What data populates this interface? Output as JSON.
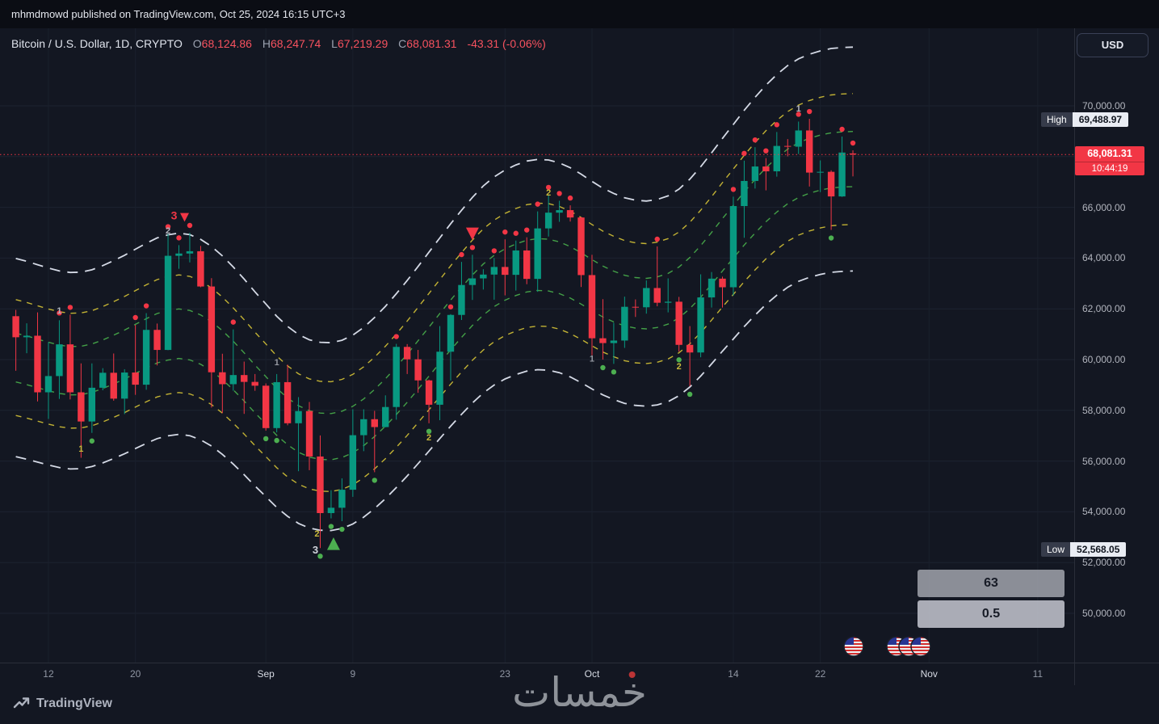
{
  "status_bar": {
    "text": "mhmdmowd published on TradingView.com, Oct 25, 2024 16:15 UTC+3"
  },
  "header": {
    "title": "Bitcoin / U.S. Dollar, 1D, CRYPTO",
    "ohlc_items": [
      {
        "label": "O",
        "value": "68,124.86"
      },
      {
        "label": "H",
        "value": "68,247.74"
      },
      {
        "label": "L",
        "value": "67,219.29"
      },
      {
        "label": "C",
        "value": "68,081.31"
      }
    ],
    "change": "-43.31 (-0.06%)"
  },
  "currency_button": {
    "label": "USD"
  },
  "badges": {
    "high_label": "High",
    "high_value": "69,488.97",
    "low_label": "Low",
    "low_value": "52,568.05",
    "last_price": "68,081.31",
    "countdown": "10:44:19"
  },
  "panels": {
    "value1": "63",
    "value2": "0.5"
  },
  "watermark": "خمسات",
  "logo_text": "TradingView",
  "colors": {
    "up": "#089981",
    "down": "#f23645",
    "buy": "#4caf50",
    "grid": "#1d2330",
    "vgrid": "#1a202c",
    "axis_sep": "#2a2e39"
  },
  "price_axis": {
    "ticks": [
      {
        "label": "70,000.00",
        "value": 70000
      },
      {
        "label": "68,000.00",
        "value": 68000
      },
      {
        "label": "66,000.00",
        "value": 66000
      },
      {
        "label": "64,000.00",
        "value": 64000
      },
      {
        "label": "62,000.00",
        "value": 62000
      },
      {
        "label": "60,000.00",
        "value": 60000
      },
      {
        "label": "58,000.00",
        "value": 58000
      },
      {
        "label": "56,000.00",
        "value": 56000
      },
      {
        "label": "54,000.00",
        "value": 54000
      },
      {
        "label": "52,000.00",
        "value": 52000
      },
      {
        "label": "50,000.00",
        "value": 50000
      }
    ]
  },
  "time_axis": {
    "ticks": [
      {
        "label": "12",
        "i": 3,
        "major": false
      },
      {
        "label": "20",
        "i": 11,
        "major": false
      },
      {
        "label": "Sep",
        "i": 23,
        "major": true
      },
      {
        "label": "9",
        "i": 31,
        "major": false
      },
      {
        "label": "23",
        "i": 45,
        "major": false
      },
      {
        "label": "Oct",
        "i": 53,
        "major": true
      },
      {
        "label": "14",
        "i": 66,
        "major": false
      },
      {
        "label": "22",
        "i": 74,
        "major": false
      },
      {
        "label": "Nov",
        "i": 84,
        "major": true
      },
      {
        "label": "11",
        "i": 94,
        "major": false
      }
    ]
  },
  "chart_data": {
    "type": "candlestick",
    "symbol": "BTCUSD",
    "timeframe": "1D",
    "title": "Bitcoin / U.S. Dollar, 1D, CRYPTO",
    "first_candle_date": "Aug 9 2024",
    "last_candle_date": "Oct 25 2024",
    "y_range_visible": [
      49000,
      72000
    ],
    "y_ticks": [
      50000,
      52000,
      54000,
      56000,
      58000,
      60000,
      62000,
      64000,
      66000,
      68000,
      70000
    ],
    "last_price": 68081.31,
    "session_high": 69488.97,
    "session_low": 52568.05,
    "ohlc": [
      [
        61710,
        61960,
        59560,
        60880
      ],
      [
        60880,
        61430,
        60250,
        60940
      ],
      [
        60940,
        61860,
        58350,
        58710
      ],
      [
        58710,
        60690,
        57660,
        59350
      ],
      [
        59350,
        61550,
        58450,
        60600
      ],
      [
        60600,
        61770,
        58430,
        58710
      ],
      [
        58710,
        59850,
        56130,
        57560
      ],
      [
        57560,
        59850,
        57110,
        58890
      ],
      [
        58890,
        59660,
        58790,
        59480
      ],
      [
        59480,
        60240,
        58380,
        58460
      ],
      [
        58460,
        59620,
        57850,
        59490
      ],
      [
        59490,
        61370,
        58610,
        59010
      ],
      [
        59010,
        61830,
        58810,
        61170
      ],
      [
        61170,
        61420,
        59770,
        60380
      ],
      [
        60380,
        64950,
        60370,
        64090
      ],
      [
        64090,
        64510,
        63580,
        64180
      ],
      [
        64180,
        65000,
        63830,
        64270
      ],
      [
        64270,
        64480,
        62850,
        62880
      ],
      [
        62880,
        63210,
        58110,
        59500
      ],
      [
        59500,
        60230,
        57890,
        59030
      ],
      [
        59030,
        61190,
        58770,
        59390
      ],
      [
        59390,
        59920,
        57860,
        59120
      ],
      [
        59120,
        59430,
        58770,
        58970
      ],
      [
        58970,
        59060,
        57200,
        57300
      ],
      [
        57300,
        59430,
        57130,
        59110
      ],
      [
        59110,
        59800,
        57410,
        57490
      ],
      [
        57490,
        58520,
        55600,
        57970
      ],
      [
        57970,
        58330,
        55640,
        56180
      ],
      [
        56180,
        57010,
        52570,
        53950
      ],
      [
        53950,
        54850,
        53740,
        54160
      ],
      [
        54160,
        55320,
        53630,
        54870
      ],
      [
        54870,
        58040,
        54590,
        57020
      ],
      [
        57020,
        58040,
        56390,
        57650
      ],
      [
        57650,
        57980,
        55560,
        57340
      ],
      [
        57340,
        58590,
        57330,
        58130
      ],
      [
        58130,
        60620,
        57630,
        60500
      ],
      [
        60500,
        60610,
        59430,
        60010
      ],
      [
        60010,
        60380,
        58690,
        59180
      ],
      [
        59180,
        59210,
        57490,
        58220
      ],
      [
        58220,
        61320,
        57610,
        60310
      ],
      [
        60310,
        61790,
        59170,
        61760
      ],
      [
        61760,
        63850,
        61560,
        62940
      ],
      [
        62940,
        64130,
        62350,
        63200
      ],
      [
        63200,
        63560,
        62760,
        63350
      ],
      [
        63350,
        64000,
        62360,
        63650
      ],
      [
        63650,
        64740,
        62530,
        63340
      ],
      [
        63340,
        64690,
        62720,
        64300
      ],
      [
        64300,
        64820,
        62970,
        63180
      ],
      [
        63180,
        65840,
        62670,
        65170
      ],
      [
        65170,
        66500,
        64850,
        65790
      ],
      [
        65790,
        66260,
        65430,
        65890
      ],
      [
        65890,
        66080,
        65440,
        65600
      ],
      [
        65600,
        65620,
        62860,
        63330
      ],
      [
        63330,
        64130,
        60170,
        60840
      ],
      [
        60840,
        62380,
        60000,
        60650
      ],
      [
        60650,
        61450,
        59830,
        60750
      ],
      [
        60750,
        62480,
        60460,
        62080
      ],
      [
        62080,
        62370,
        61680,
        62060
      ],
      [
        62060,
        63120,
        61810,
        62820
      ],
      [
        62820,
        64460,
        62100,
        62240
      ],
      [
        62240,
        63200,
        61860,
        62280
      ],
      [
        62280,
        62470,
        60310,
        60580
      ],
      [
        60580,
        61320,
        58950,
        60280
      ],
      [
        60280,
        63360,
        60090,
        62450
      ],
      [
        62450,
        63450,
        62050,
        63190
      ],
      [
        63190,
        63270,
        62050,
        62850
      ],
      [
        62850,
        66420,
        62520,
        66050
      ],
      [
        66050,
        67840,
        64800,
        67040
      ],
      [
        67040,
        68370,
        66740,
        67610
      ],
      [
        67610,
        67940,
        66670,
        67420
      ],
      [
        67420,
        68970,
        67210,
        68420
      ],
      [
        68420,
        68690,
        68010,
        68390
      ],
      [
        68390,
        69380,
        68100,
        69030
      ],
      [
        69030,
        69489,
        66820,
        67370
      ],
      [
        67370,
        67850,
        66600,
        67400
      ],
      [
        67400,
        67460,
        65110,
        66430
      ],
      [
        66430,
        68790,
        66410,
        68160
      ],
      [
        68124.86,
        68247.74,
        67219.29,
        68081.31
      ]
    ],
    "bands": [
      {
        "name": "outer-white",
        "mult": 0.065,
        "color": "#d5dae6",
        "dash": "13 9",
        "width": 1.8
      },
      {
        "name": "mid-yellow",
        "mult": 0.038,
        "color": "#c2b234",
        "dash": "7 7",
        "width": 1.4
      },
      {
        "name": "inner-green",
        "mult": 0.016,
        "color": "#43a047",
        "dash": "7 7",
        "width": 1.4
      }
    ],
    "signals": {
      "sell_dots": [
        4,
        5,
        11,
        12,
        14,
        15,
        16,
        20,
        35,
        40,
        41,
        42,
        44,
        45,
        46,
        47,
        48,
        49,
        50,
        51,
        59,
        66,
        67,
        68,
        69,
        70,
        72,
        73,
        76,
        77
      ],
      "buy_dots": [
        7,
        23,
        24,
        28,
        29,
        30,
        33,
        38,
        54,
        55,
        61,
        62,
        75
      ],
      "triangles": [
        {
          "dir": "down",
          "i": 15,
          "dx": 7,
          "price": 65600,
          "size": 5.5,
          "color": "#f23645"
        },
        {
          "dir": "down",
          "i": 42,
          "dx": 0,
          "price": 64950,
          "size": 8,
          "color": "#f23645"
        },
        {
          "dir": "up",
          "i": 29,
          "dx": 3,
          "price": 52750,
          "size": 8,
          "color": "#4caf50"
        }
      ],
      "labels": [
        {
          "text": "1",
          "i": 4,
          "price": 61950,
          "color": "#b2b5be",
          "size": 11
        },
        {
          "text": "1",
          "i": 6,
          "price": 56500,
          "color": "#c9b93b",
          "size": 11
        },
        {
          "text": "2",
          "i": 14,
          "price": 65100,
          "color": "#b2b5be",
          "size": 11
        },
        {
          "text": "3",
          "i": 15,
          "dx": -6,
          "price": 65650,
          "color": "#f23645",
          "size": 14
        },
        {
          "text": "1",
          "i": 24,
          "price": 59900,
          "color": "#9598a1",
          "size": 11
        },
        {
          "text": "2",
          "i": 28,
          "dx": -4,
          "price": 53150,
          "color": "#c9b93b",
          "size": 11
        },
        {
          "text": "3",
          "i": 28,
          "dx": -6,
          "price": 52480,
          "color": "#d1d4dc",
          "size": 13
        },
        {
          "text": "2",
          "i": 38,
          "price": 56950,
          "color": "#c9b93b",
          "size": 11
        },
        {
          "text": "2",
          "i": 49,
          "price": 66600,
          "color": "#c9b93b",
          "size": 11
        },
        {
          "text": "1",
          "i": 53,
          "price": 60050,
          "color": "#9598a1",
          "size": 11
        },
        {
          "text": "2",
          "i": 61,
          "price": 59750,
          "color": "#c9b93b",
          "size": 11
        },
        {
          "text": "1",
          "i": 72,
          "price": 69900,
          "color": "#b2b5be",
          "size": 11
        }
      ]
    }
  }
}
